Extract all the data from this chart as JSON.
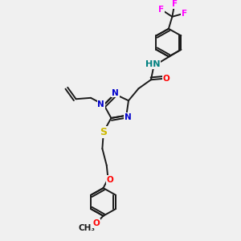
{
  "bg_color": "#f0f0f0",
  "bond_color": "#1a1a1a",
  "atom_colors": {
    "N": "#0000cc",
    "O": "#ff0000",
    "S": "#ccb800",
    "F": "#ff00ff",
    "HN": "#008080",
    "C": "#1a1a1a"
  },
  "font_size": 7.5
}
